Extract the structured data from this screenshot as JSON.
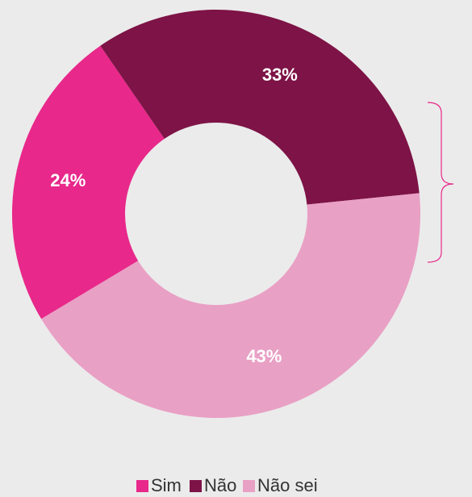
{
  "chart_data": {
    "type": "donut",
    "categories": [
      "Sim",
      "Não",
      "Não sei"
    ],
    "values": [
      24,
      33,
      43
    ],
    "value_labels": [
      "24%",
      "33%",
      "43%"
    ],
    "colors": [
      "#e8288a",
      "#7d1346",
      "#e9a0c5"
    ],
    "legend": "bottom"
  }
}
